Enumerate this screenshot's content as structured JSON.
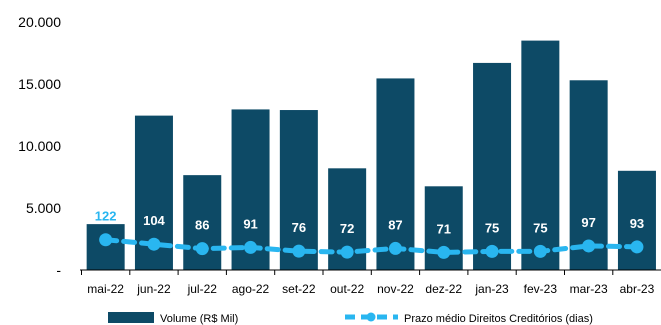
{
  "chart_data": {
    "type": "bar",
    "categories": [
      "mai-22",
      "jun-22",
      "jul-22",
      "ago-22",
      "set-22",
      "out-22",
      "nov-22",
      "dez-22",
      "jan-23",
      "fev-23",
      "mar-23",
      "abr-23"
    ],
    "series": [
      {
        "name": "Volume (R$ Mil)",
        "type": "bar",
        "color": "#0d4a66",
        "values": [
          3700,
          12450,
          7650,
          12950,
          12900,
          8200,
          15450,
          6750,
          16700,
          18500,
          15300,
          8000
        ]
      },
      {
        "name": "Prazo médio Direitos Creditórios (dias)",
        "type": "line",
        "style": "dashed",
        "color": "#29b6f0",
        "values": [
          122,
          104,
          86,
          91,
          76,
          72,
          87,
          71,
          75,
          75,
          97,
          93
        ],
        "labels": [
          "122",
          "104",
          "86",
          "91",
          "76",
          "72",
          "87",
          "71",
          "75",
          "75",
          "97",
          "93"
        ]
      }
    ],
    "y_ticks": [
      "-",
      "5.000",
      "10.000",
      "15.000",
      "20.000"
    ],
    "ylim": [
      0,
      20000
    ],
    "line_ylim": [
      0,
      1000
    ],
    "grid": false,
    "legend_position": "bottom",
    "colors": {
      "bar": "#0d4a66",
      "line": "#29b6f0",
      "axis": "#000000",
      "label_first": "#29b6f0",
      "label": "#ffffff"
    }
  }
}
